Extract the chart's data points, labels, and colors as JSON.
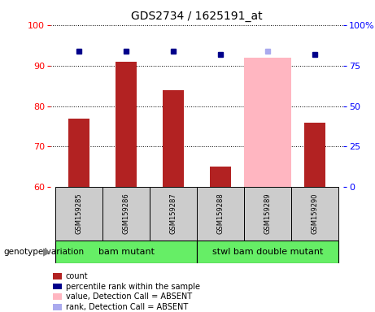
{
  "title": "GDS2734 / 1625191_at",
  "samples": [
    "GSM159285",
    "GSM159286",
    "GSM159287",
    "GSM159288",
    "GSM159289",
    "GSM159290"
  ],
  "count_values": [
    77,
    91,
    84,
    65,
    null,
    76
  ],
  "count_absent_values": [
    null,
    null,
    null,
    null,
    92,
    null
  ],
  "rank_values": [
    84,
    84,
    84,
    82,
    null,
    82
  ],
  "rank_absent_values": [
    null,
    null,
    null,
    null,
    84,
    null
  ],
  "ylim_left": [
    60,
    100
  ],
  "ylim_right": [
    0,
    100
  ],
  "yticks_left": [
    60,
    70,
    80,
    90,
    100
  ],
  "yticks_right": [
    0,
    25,
    50,
    75,
    100
  ],
  "ytick_labels_right": [
    "0",
    "25",
    "50",
    "75",
    "100%"
  ],
  "bar_width": 0.45,
  "bar_color_red": "#b22222",
  "bar_color_pink": "#ffb6c1",
  "dot_color_blue": "#00008b",
  "dot_color_lightblue": "#aaaaee",
  "group1_label": "bam mutant",
  "group2_label": "stwl bam double mutant",
  "group_color": "#66ee66",
  "group1_indices": [
    0,
    1,
    2
  ],
  "group2_indices": [
    3,
    4,
    5
  ],
  "xlabel_genotype": "genotype/variation",
  "legend_items": [
    {
      "label": "count",
      "color": "#b22222"
    },
    {
      "label": "percentile rank within the sample",
      "color": "#00008b"
    },
    {
      "label": "value, Detection Call = ABSENT",
      "color": "#ffb6c1"
    },
    {
      "label": "rank, Detection Call = ABSENT",
      "color": "#aaaaee"
    }
  ],
  "tick_area_color": "#cccccc",
  "background_color": "#ffffff"
}
